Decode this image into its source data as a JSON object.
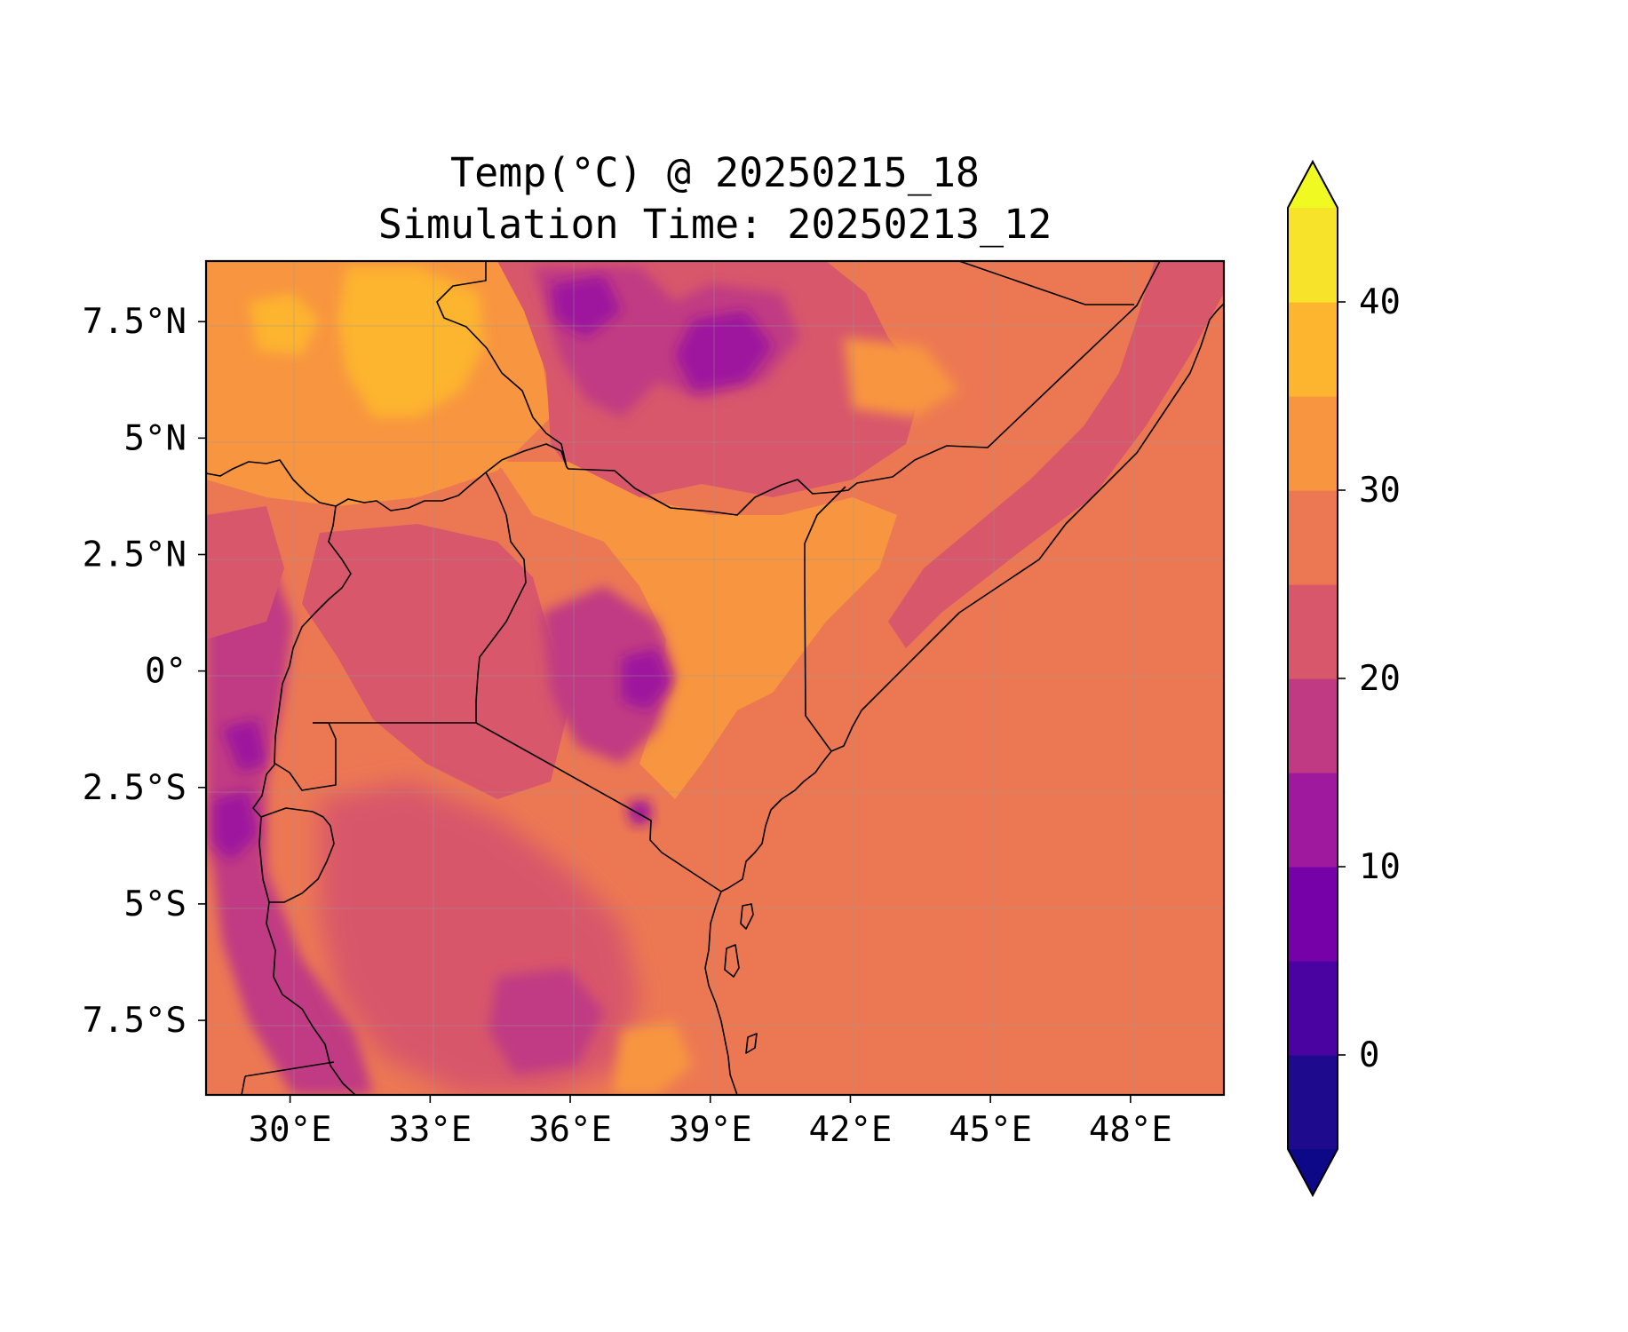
{
  "title": {
    "line1": "Temp(°C) @ 20250215_18",
    "line2": "Simulation Time: 20250213_12"
  },
  "map": {
    "variable": "2m temperature",
    "units": "°C",
    "lon_range": [
      28.2,
      50.0
    ],
    "lat_range": [
      -9.1,
      8.8
    ],
    "x_ticks": [
      "30°E",
      "33°E",
      "36°E",
      "39°E",
      "42°E",
      "45°E",
      "48°E"
    ],
    "x_tick_values": [
      30,
      33,
      36,
      39,
      42,
      45,
      48
    ],
    "y_ticks": [
      "7.5°N",
      "5°N",
      "2.5°N",
      "0°",
      "2.5°S",
      "5°S",
      "7.5°S"
    ],
    "y_tick_values": [
      7.5,
      5,
      2.5,
      0,
      -2.5,
      -5,
      -7.5
    ],
    "gridlines": true
  },
  "colorbar": {
    "levels": [
      -5,
      0,
      5,
      10,
      15,
      20,
      25,
      30,
      35,
      40,
      45
    ],
    "colors": [
      "#1e0a8c",
      "#4a02a0",
      "#7701a8",
      "#9e199d",
      "#c03a83",
      "#d8576b",
      "#ec7853",
      "#f89540",
      "#fdb42f",
      "#f6e32a"
    ],
    "extend_low_color": "#0d0887",
    "extend_high_color": "#f0f921",
    "tick_labels": [
      "0",
      "10",
      "20",
      "30",
      "40"
    ],
    "tick_values": [
      0,
      10,
      20,
      30,
      40
    ]
  }
}
